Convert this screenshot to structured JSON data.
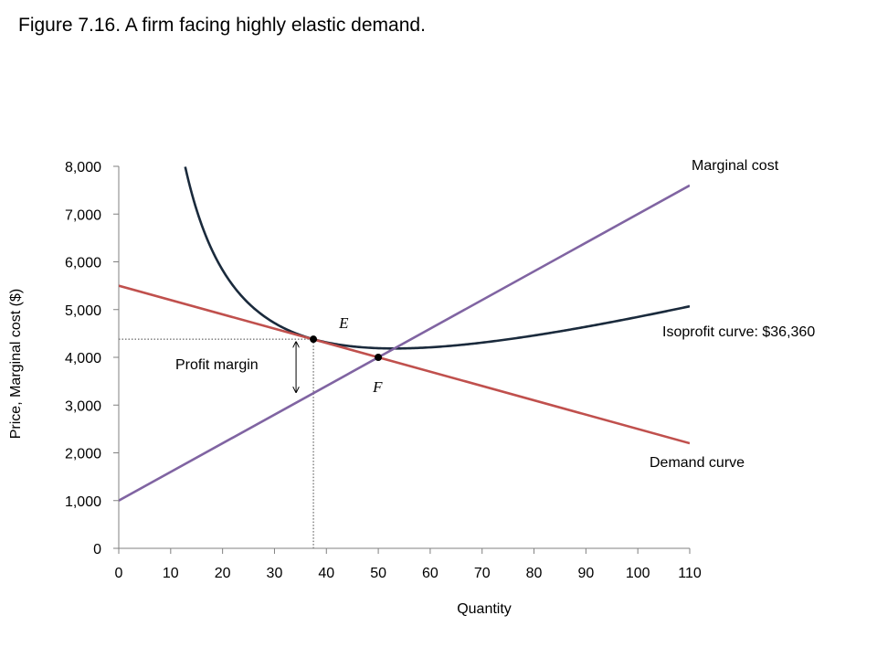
{
  "figure_title": "Figure 7.16. A firm facing highly elastic demand.",
  "colors": {
    "demand": "#c0504d",
    "marginal_cost": "#8064a2",
    "isoprofit": "#1a2a3c",
    "axis": "#808080",
    "text": "#000000"
  },
  "chart_data": {
    "type": "line",
    "xlabel": "Quantity",
    "ylabel": "Price, Marginal cost ($)",
    "xlim": [
      0,
      110
    ],
    "ylim": [
      0,
      8000
    ],
    "x_ticks": [
      0,
      10,
      20,
      30,
      40,
      50,
      60,
      70,
      80,
      90,
      100,
      110
    ],
    "y_ticks": [
      0,
      1000,
      2000,
      3000,
      4000,
      5000,
      6000,
      7000,
      8000
    ],
    "x_tick_labels": [
      "0",
      "10",
      "20",
      "30",
      "40",
      "50",
      "60",
      "70",
      "80",
      "90",
      "100",
      "110"
    ],
    "y_tick_labels": [
      "0",
      "1,000",
      "2,000",
      "3,000",
      "4,000",
      "5,000",
      "6,000",
      "7,000",
      "8,000"
    ],
    "grid": false,
    "series": [
      {
        "name": "Demand curve",
        "kind": "line",
        "color": "#c0504d",
        "x": [
          0,
          110
        ],
        "y": [
          5500,
          2200
        ]
      },
      {
        "name": "Marginal cost",
        "kind": "line",
        "color": "#8064a2",
        "x": [
          0,
          110
        ],
        "y": [
          1000,
          7600
        ]
      },
      {
        "name": "Isoprofit curve: $36,360",
        "kind": "isoprofit",
        "color": "#1a2a3c",
        "profit": 36360,
        "x_range": [
          12.8,
          110
        ]
      }
    ],
    "points": [
      {
        "label": "E",
        "x": 37.5,
        "y": 4380
      },
      {
        "label": "F",
        "x": 50,
        "y": 4000
      }
    ],
    "annotations": {
      "marginal_cost": "Marginal cost",
      "isoprofit": "Isoprofit curve: $36,360",
      "demand": "Demand curve",
      "profit_margin": "Profit margin"
    }
  }
}
